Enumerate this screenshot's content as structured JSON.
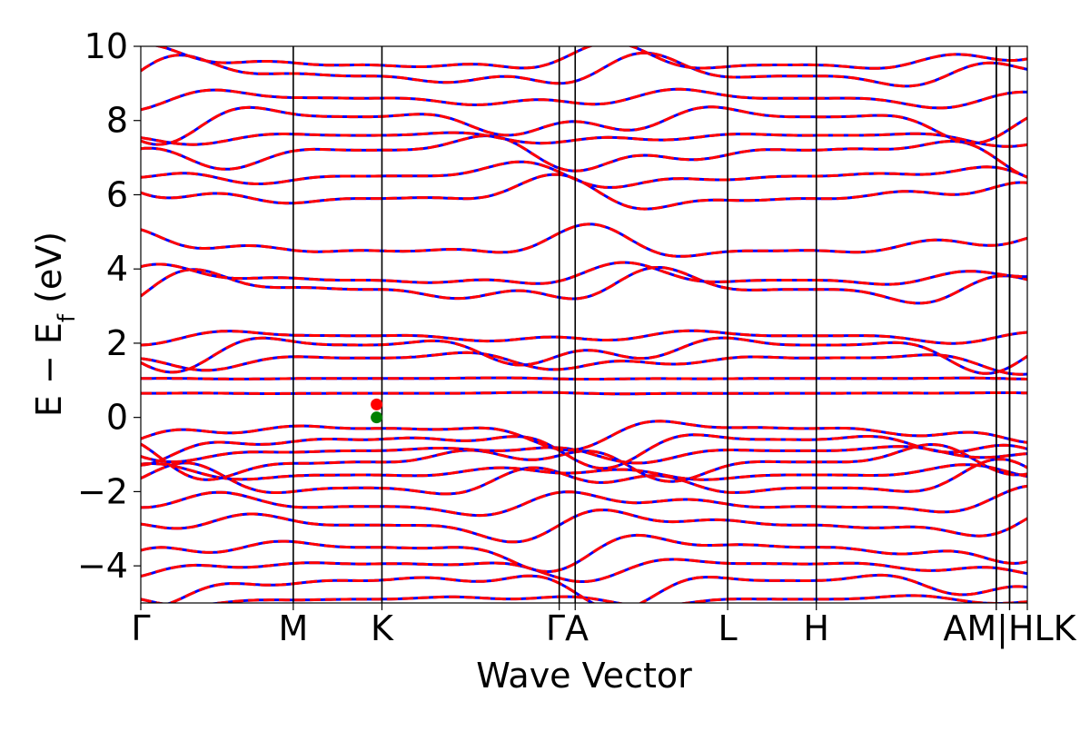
{
  "chart_data": {
    "type": "line",
    "title": "",
    "xlabel": "Wave Vector",
    "ylabel_main": "E − E",
    "ylabel_sub": "f",
    "ylabel_unit": " (eV)",
    "ylim": [
      -5,
      10
    ],
    "y_ticks": [
      {
        "value": -4,
        "label": "−4"
      },
      {
        "value": -2,
        "label": "−2"
      },
      {
        "value": 0,
        "label": "0"
      },
      {
        "value": 2,
        "label": "2"
      },
      {
        "value": 4,
        "label": "4"
      },
      {
        "value": 6,
        "label": "6"
      },
      {
        "value": 8,
        "label": "8"
      },
      {
        "value": 10,
        "label": "10"
      }
    ],
    "kpoints": [
      {
        "label": "Γ",
        "pos": 0.0
      },
      {
        "label": "M",
        "pos": 0.172
      },
      {
        "label": "K",
        "pos": 0.272
      },
      {
        "label": "Γ",
        "pos": 0.472
      },
      {
        "label": "A",
        "pos": 0.49
      },
      {
        "label": "L",
        "pos": 0.662
      },
      {
        "label": "H",
        "pos": 0.762
      },
      {
        "label": "A",
        "pos": 0.965
      },
      {
        "label": "L",
        "pos": 0.965
      },
      {
        "label": "M",
        "pos": 0.98
      },
      {
        "label": "H",
        "pos": 0.98
      },
      {
        "label": "K",
        "pos": 1.0
      }
    ],
    "kpoint_label_text": [
      "Γ",
      "M",
      "K",
      "ΓA",
      "L",
      "H",
      "AM|HLK"
    ],
    "series_colors": {
      "up": "#0000ff",
      "down": "#ff0000",
      "vbm": "#008000",
      "cbm": "#ff0000"
    },
    "series_styles": {
      "up": "solid",
      "down": "dashed"
    },
    "markers": [
      {
        "name": "vbm",
        "x": 0.266,
        "y": 0.0,
        "color": "#008000"
      },
      {
        "name": "cbm",
        "x": 0.266,
        "y": 0.35,
        "color": "#ff0000"
      }
    ],
    "band_levels_at_gamma": [
      -4.9,
      -4.4,
      -3.95,
      -3.5,
      -2.9,
      -2.4,
      -1.9,
      -1.55,
      -1.2,
      -0.9,
      -0.6,
      -0.3,
      0.65,
      1.05,
      1.6,
      1.95,
      2.2,
      3.45,
      3.7,
      4.5,
      5.9,
      6.5,
      7.2,
      7.6,
      8.1,
      8.6,
      9.2,
      9.5
    ]
  }
}
